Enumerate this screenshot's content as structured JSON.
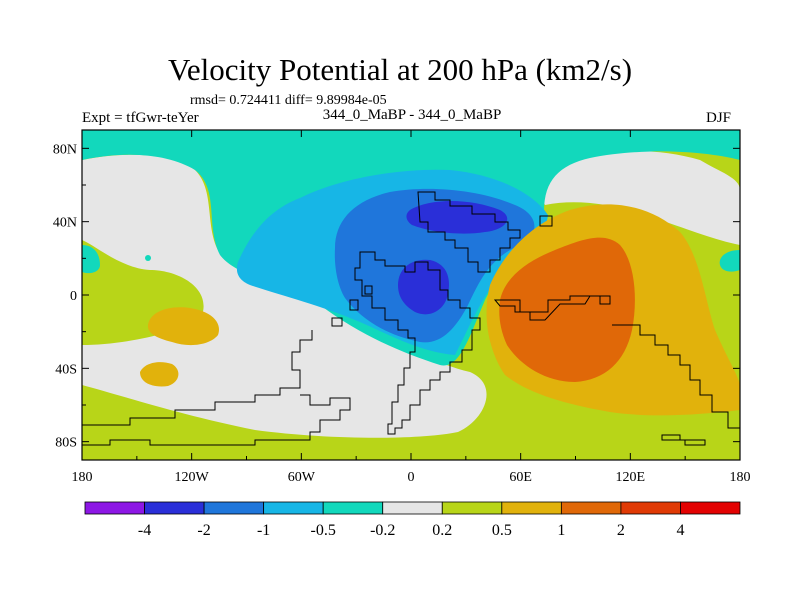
{
  "figure": {
    "title": "Velocity Potential at 200 hPa (km2/s)",
    "stats_line": "rmsd= 0.724411 diff= 9.89984e-05",
    "left_label": "Expt = tfGwr-teYer",
    "center_label": "344_0_MaBP - 344_0_MaBP",
    "right_label": "DJF"
  },
  "chart_data": {
    "type": "heatmap",
    "projection": "cylindrical-equidistant",
    "title": "Velocity Potential at 200 hPa (km2/s)",
    "variable": "Velocity Potential",
    "level": "200 hPa",
    "units": "km2/s",
    "xlim": [
      -180,
      180
    ],
    "ylim": [
      -90,
      90
    ],
    "x_ticks": [
      {
        "value": -180,
        "label": "180"
      },
      {
        "value": -120,
        "label": "120W"
      },
      {
        "value": -60,
        "label": "60W"
      },
      {
        "value": 0,
        "label": "0"
      },
      {
        "value": 60,
        "label": "60E"
      },
      {
        "value": 120,
        "label": "120E"
      },
      {
        "value": 180,
        "label": "180"
      }
    ],
    "y_ticks": [
      {
        "value": 80,
        "label": "80N"
      },
      {
        "value": 40,
        "label": "40N"
      },
      {
        "value": 0,
        "label": "0"
      },
      {
        "value": -40,
        "label": "40S"
      },
      {
        "value": -80,
        "label": "80S"
      }
    ],
    "contour_levels": [
      -4,
      -2,
      -1,
      -0.5,
      -0.2,
      0.2,
      0.5,
      1,
      2,
      4
    ],
    "colorbar": {
      "colors": [
        "#8d17e5",
        "#2a2fd8",
        "#1f76db",
        "#17b6e6",
        "#12d8bc",
        "#e6e6e6",
        "#b8d518",
        "#e1b20c",
        "#e06808",
        "#e03a05",
        "#e30202"
      ],
      "labels": [
        "-4",
        "-2",
        "-1",
        "-0.5",
        "-0.2",
        "0.2",
        "0.5",
        "1",
        "2",
        "4"
      ]
    },
    "features": [
      {
        "name": "northern polar band",
        "sign": "weak negative",
        "range": "-0.5 to -0.2"
      },
      {
        "name": "divergence center over South America",
        "center_lon": 7,
        "center_lat": 0,
        "min_category": "-4 to -2"
      },
      {
        "name": "convergence center over Africa/Indian Ocean",
        "center_lon": 75,
        "center_lat": -15,
        "max_category": "1 to 2"
      },
      {
        "name": "southern hemisphere positive band",
        "range": "0.2 to 0.5"
      }
    ]
  }
}
